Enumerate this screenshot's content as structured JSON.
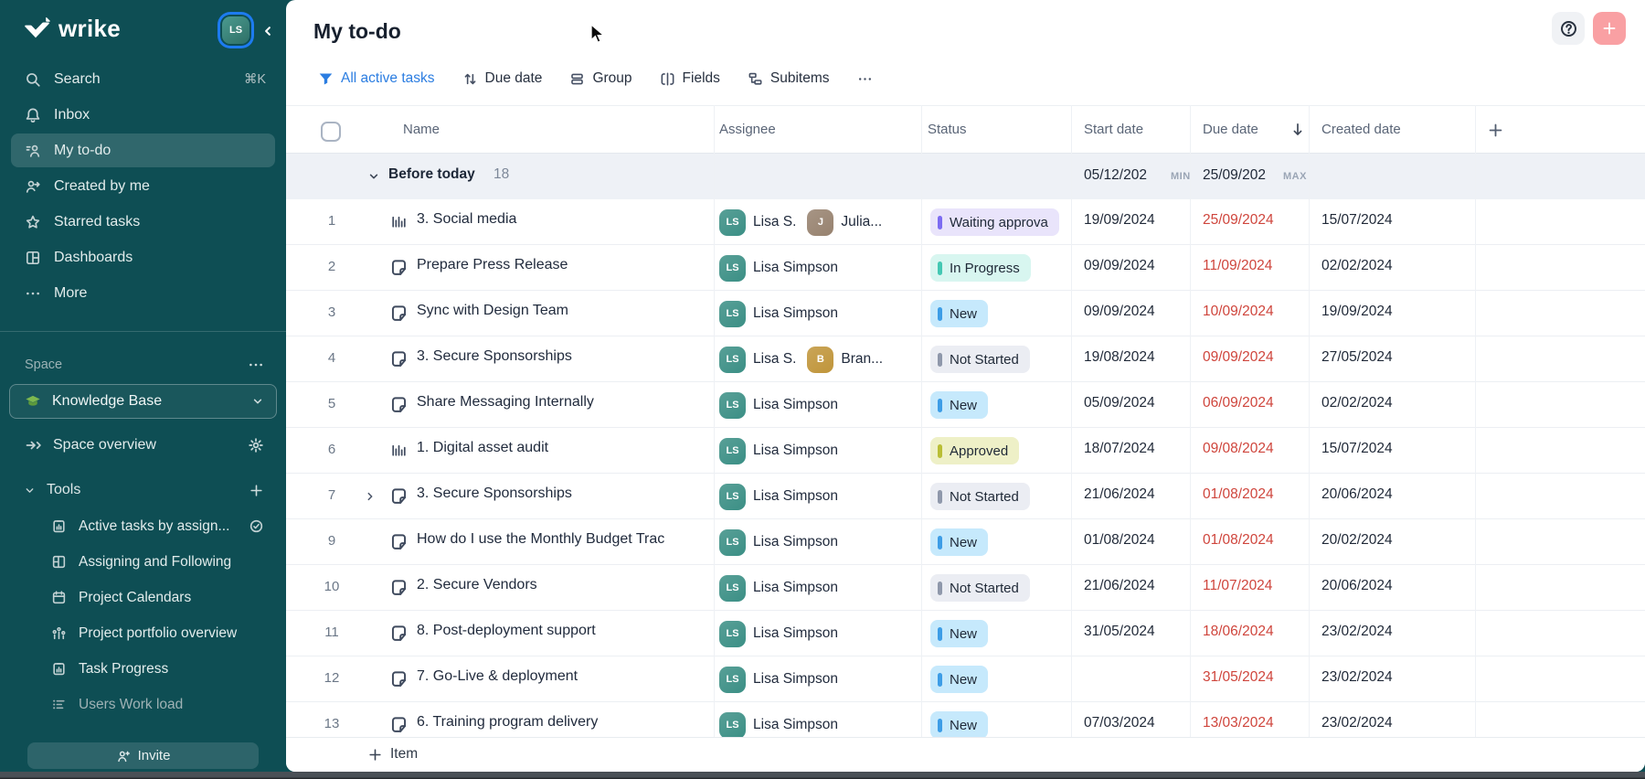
{
  "sidebar": {
    "logo_text": "wrike",
    "nav": [
      {
        "icon": "search",
        "label": "Search",
        "shortcut": "⌘K"
      },
      {
        "icon": "inbox-bell",
        "label": "Inbox"
      },
      {
        "icon": "my-todo",
        "label": "My to-do",
        "active": true
      },
      {
        "icon": "created-by-me",
        "label": "Created by me"
      },
      {
        "icon": "star",
        "label": "Starred tasks"
      },
      {
        "icon": "dashboards",
        "label": "Dashboards"
      },
      {
        "icon": "more-dots",
        "label": "More"
      }
    ],
    "space": {
      "section_label": "Space",
      "name": "Knowledge Base",
      "overview_label": "Space overview",
      "tools_label": "Tools",
      "tools": [
        {
          "icon": "clipboard-chart",
          "label": "Active tasks by assign...",
          "trailing": "check-circle"
        },
        {
          "icon": "grid-panels",
          "label": "Assigning and Following"
        },
        {
          "icon": "calendar",
          "label": "Project Calendars"
        },
        {
          "icon": "portfolio-chart",
          "label": "Project portfolio overview"
        },
        {
          "icon": "clipboard-chart",
          "label": "Task Progress"
        },
        {
          "icon": "workload",
          "label": "Users Work load",
          "muted": true
        }
      ]
    },
    "invite_label": "Invite"
  },
  "header": {
    "title": "My to-do"
  },
  "toolbar": {
    "filter_label": "All active tasks",
    "sort_label": "Due date",
    "group_label": "Group",
    "fields_label": "Fields",
    "subitems_label": "Subitems"
  },
  "table": {
    "header": {
      "name": "Name",
      "assignee": "Assignee",
      "status": "Status",
      "start": "Start date",
      "due": "Due date",
      "created": "Created date"
    },
    "group": {
      "label": "Before today",
      "count": "18",
      "min_value": "05/12/202",
      "min_tag": "MIN",
      "max_value": "25/09/202",
      "max_tag": "MAX"
    },
    "rows": [
      {
        "num": "1",
        "icon": "report-bars",
        "name": "3. Social media",
        "assignees": [
          {
            "person": "lisa",
            "label": "Lisa S."
          },
          {
            "person": "julia",
            "label": "Julia..."
          }
        ],
        "status": {
          "label": "Waiting approva",
          "type": "waiting"
        },
        "start": "19/09/2024",
        "due": "25/09/2024",
        "created": "15/07/2024"
      },
      {
        "num": "2",
        "icon": "task-doc",
        "name": "Prepare Press Release",
        "assignees": [
          {
            "person": "lisa",
            "label": "Lisa Simpson"
          }
        ],
        "status": {
          "label": "In Progress",
          "type": "in_progress"
        },
        "start": "09/09/2024",
        "due": "11/09/2024",
        "created": "02/02/2024"
      },
      {
        "num": "3",
        "icon": "task-doc",
        "name": "Sync with Design Team",
        "assignees": [
          {
            "person": "lisa",
            "label": "Lisa Simpson"
          }
        ],
        "status": {
          "label": "New",
          "type": "new"
        },
        "start": "09/09/2024",
        "due": "10/09/2024",
        "created": "19/09/2024"
      },
      {
        "num": "4",
        "icon": "task-doc",
        "name": "3. Secure Sponsorships",
        "assignees": [
          {
            "person": "lisa",
            "label": "Lisa S."
          },
          {
            "person": "brandon",
            "label": "Bran..."
          }
        ],
        "status": {
          "label": "Not Started",
          "type": "not_started"
        },
        "start": "19/08/2024",
        "due": "09/09/2024",
        "created": "27/05/2024"
      },
      {
        "num": "5",
        "icon": "task-doc",
        "name": "Share Messaging Internally",
        "assignees": [
          {
            "person": "lisa",
            "label": "Lisa Simpson"
          }
        ],
        "status": {
          "label": "New",
          "type": "new"
        },
        "start": "05/09/2024",
        "due": "06/09/2024",
        "created": "02/02/2024"
      },
      {
        "num": "6",
        "icon": "report-bars",
        "name": "1. Digital asset audit",
        "assignees": [
          {
            "person": "lisa",
            "label": "Lisa Simpson"
          }
        ],
        "status": {
          "label": "Approved",
          "type": "approved"
        },
        "start": "18/07/2024",
        "due": "09/08/2024",
        "created": "15/07/2024"
      },
      {
        "num": "7",
        "icon": "task-doc",
        "name": "3. Secure Sponsorships",
        "expandable": true,
        "assignees": [
          {
            "person": "lisa",
            "label": "Lisa Simpson"
          }
        ],
        "status": {
          "label": "Not Started",
          "type": "not_started"
        },
        "start": "21/06/2024",
        "due": "01/08/2024",
        "created": "20/06/2024"
      },
      {
        "num": "9",
        "icon": "task-doc",
        "name": "How do I use the Monthly Budget Trac",
        "assignees": [
          {
            "person": "lisa",
            "label": "Lisa Simpson"
          }
        ],
        "status": {
          "label": "New",
          "type": "new"
        },
        "start": "01/08/2024",
        "due": "01/08/2024",
        "created": "20/02/2024"
      },
      {
        "num": "10",
        "icon": "task-doc",
        "name": "2. Secure Vendors",
        "assignees": [
          {
            "person": "lisa",
            "label": "Lisa Simpson"
          }
        ],
        "status": {
          "label": "Not Started",
          "type": "not_started"
        },
        "start": "21/06/2024",
        "due": "11/07/2024",
        "created": "20/06/2024"
      },
      {
        "num": "11",
        "icon": "task-doc",
        "name": "8. Post-deployment support",
        "assignees": [
          {
            "person": "lisa",
            "label": "Lisa Simpson"
          }
        ],
        "status": {
          "label": "New",
          "type": "new"
        },
        "start": "31/05/2024",
        "due": "18/06/2024",
        "created": "23/02/2024"
      },
      {
        "num": "12",
        "icon": "task-doc",
        "name": "7. Go-Live & deployment",
        "assignees": [
          {
            "person": "lisa",
            "label": "Lisa Simpson"
          }
        ],
        "status": {
          "label": "New",
          "type": "new"
        },
        "start": "",
        "due": "31/05/2024",
        "created": "23/02/2024"
      },
      {
        "num": "13",
        "icon": "task-doc",
        "name": "6. Training program delivery",
        "assignees": [
          {
            "person": "lisa",
            "label": "Lisa Simpson"
          }
        ],
        "status": {
          "label": "New",
          "type": "new"
        },
        "start": "07/03/2024",
        "due": "13/03/2024",
        "created": "23/02/2024"
      }
    ]
  },
  "footer": {
    "add_item_label": "Item"
  },
  "people": {
    "lisa": {
      "initials": "LS",
      "color": "#3b8f85"
    },
    "julia": {
      "initials": "J",
      "color": "#97826f"
    },
    "brandon": {
      "initials": "B",
      "color": "#c0953a"
    }
  },
  "status_styles": {
    "waiting": {
      "bg": "#e9e4fb",
      "bar": "#7c6bf2"
    },
    "in_progress": {
      "bg": "#d8f6f0",
      "bar": "#44c8b3"
    },
    "new": {
      "bg": "#c6e9fc",
      "bar": "#3d9de6"
    },
    "not_started": {
      "bg": "#ebedf3",
      "bar": "#8f98ab"
    },
    "approved": {
      "bg": "#eef0c7",
      "bar": "#b9be35"
    }
  },
  "colors": {
    "sidebar_bg": "#0e4e54",
    "link_blue": "#2b7de1",
    "overdue_red": "#cf453c",
    "add_button_pink": "#f9a0a3",
    "avatar_ring_blue": "#1d7bf0",
    "group_row_bg": "#eef1f6"
  }
}
